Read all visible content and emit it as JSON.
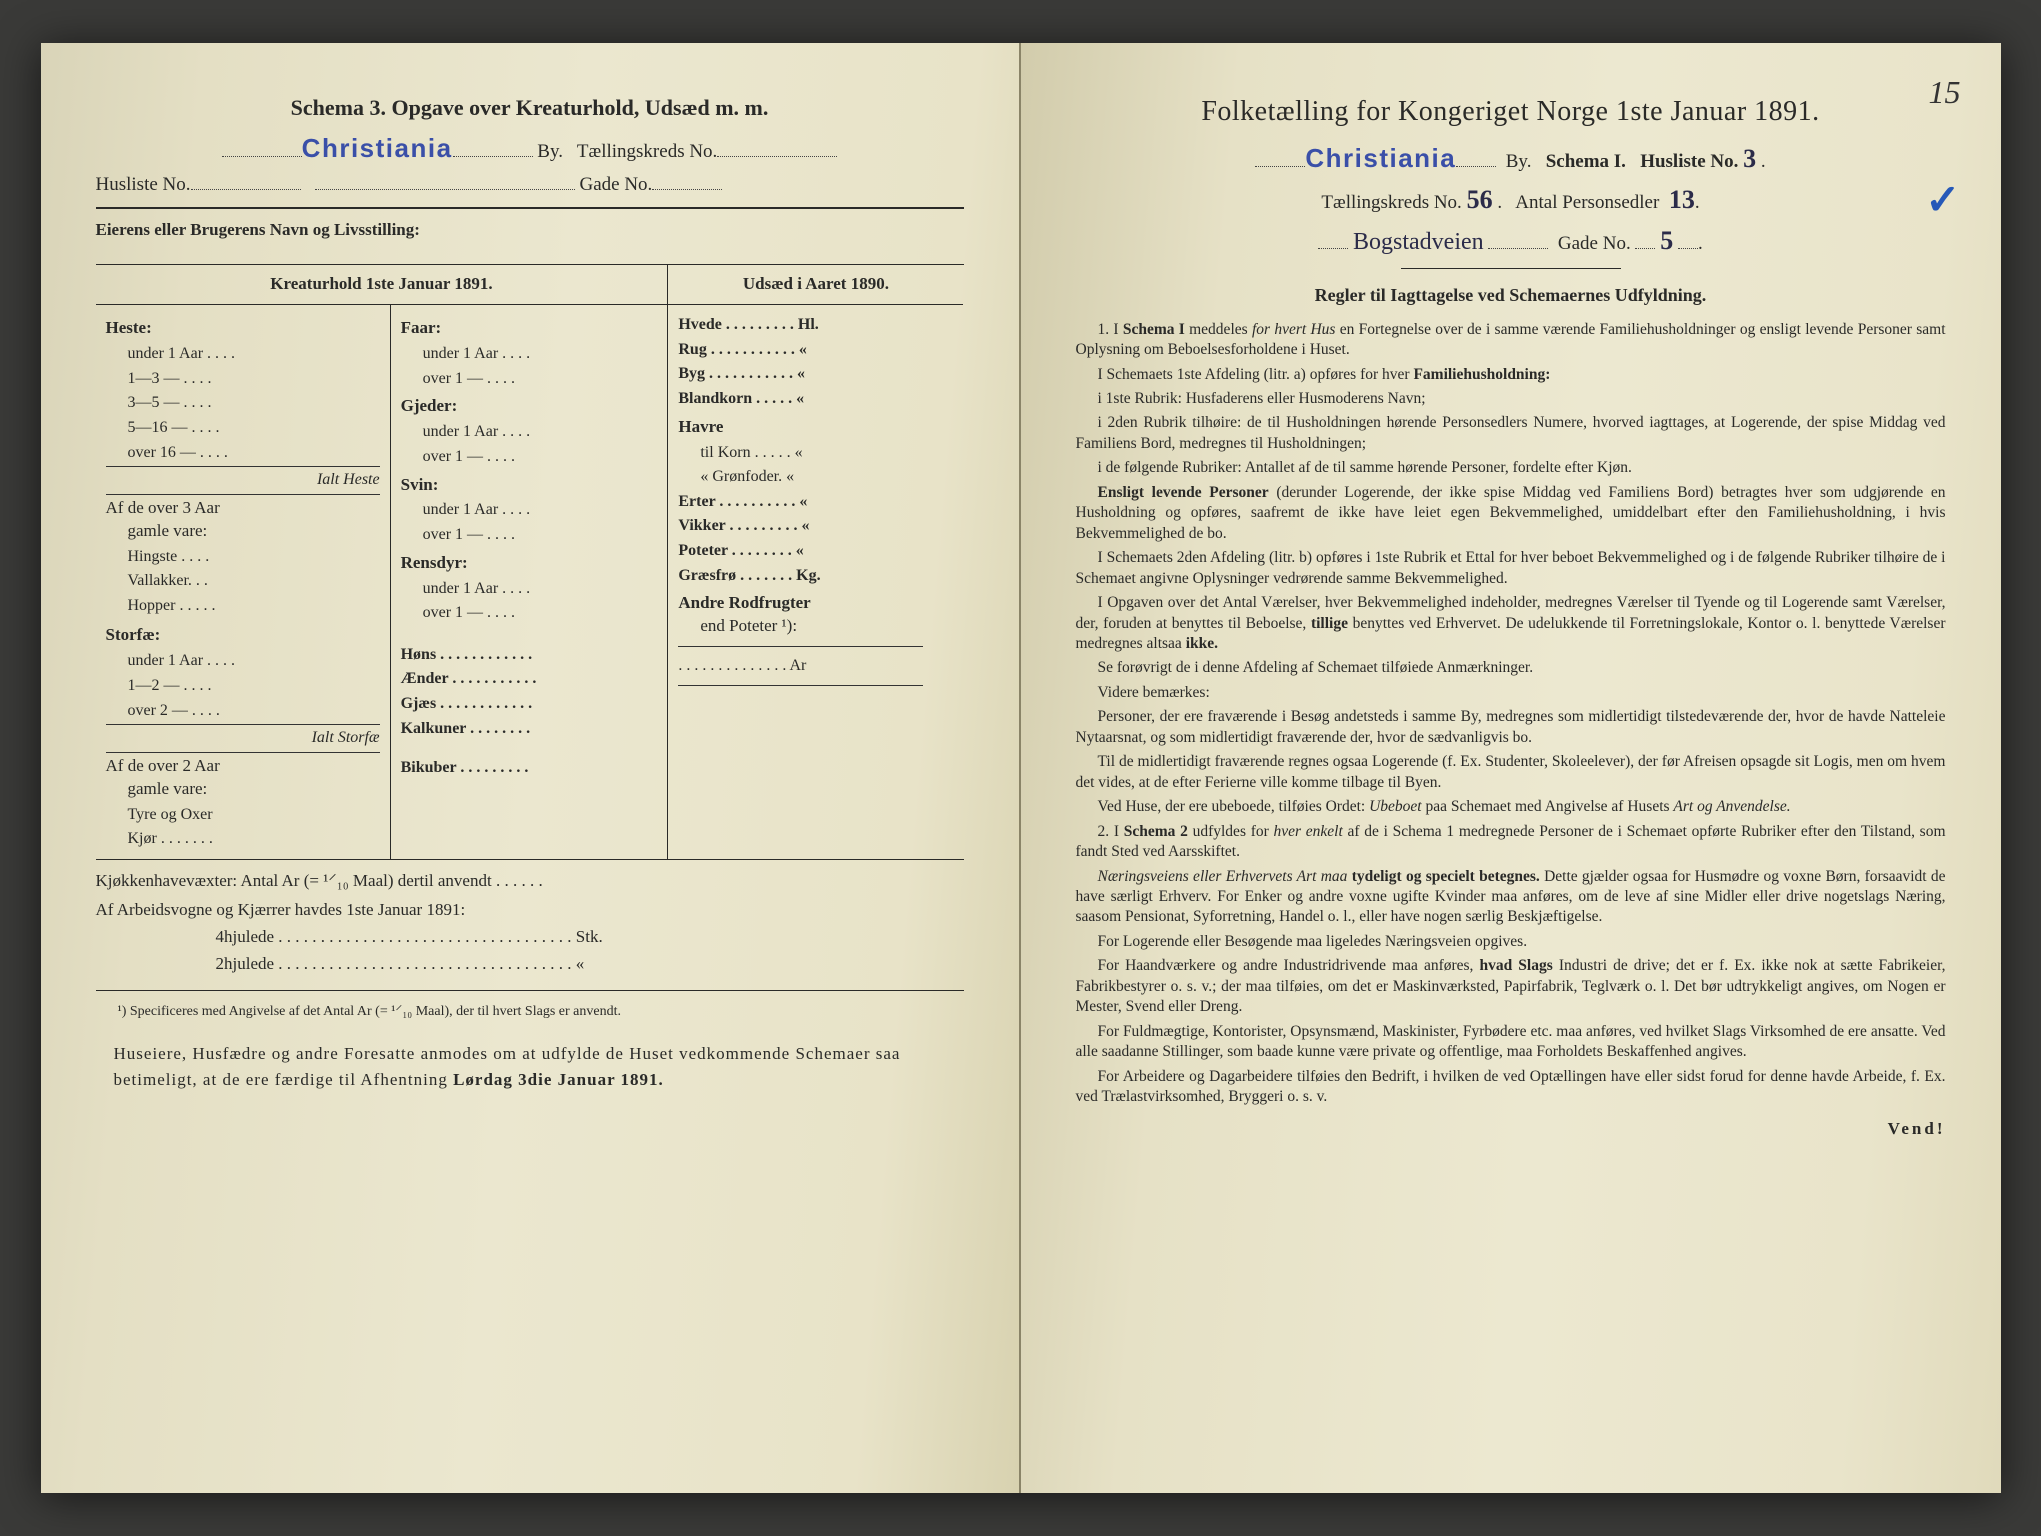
{
  "left": {
    "schema_title": "Schema 3.  Opgave over Kreaturhold, Udsæd m. m.",
    "city_stamp": "Christiania",
    "by_label": "By.",
    "tk_label": "Tællingskreds No.",
    "husliste_label": "Husliste No.",
    "gade_label": "Gade No.",
    "owner_label": "Eierens eller Brugerens Navn og Livsstilling:",
    "col_head_left": "Kreaturhold 1ste Januar 1891.",
    "col_head_right": "Udsæd i Aaret 1890.",
    "heste_hdr": "Heste:",
    "heste_rows": [
      "under 1 Aar . . . .",
      "1—3   —   . . . .",
      "3—5   —   . . . .",
      "5—16 —   . . . .",
      "over 16 —   . . . ."
    ],
    "ialt_heste": "Ialt Heste",
    "af_over3_1": "Af de over 3 Aar",
    "af_over3_2": "gamle vare:",
    "hingste": "Hingste . . . .",
    "vallakker": "Vallakker. . .",
    "hopper": "Hopper . . . . .",
    "storfae_hdr": "Storfæ:",
    "storfae_rows": [
      "under 1 Aar . . . .",
      "1—2   —   . . . .",
      "over 2   —   . . . ."
    ],
    "ialt_storfae": "Ialt Storfæ",
    "af_over2_1": "Af de over 2 Aar",
    "af_over2_2": "gamle vare:",
    "tyre": "Tyre og Oxer",
    "kjor": "Kjør . . . . . . .",
    "faar_hdr": "Faar:",
    "u1": "under 1 Aar . . . .",
    "o1": "over 1   —   . . . .",
    "gjeder_hdr": "Gjeder:",
    "svin_hdr": "Svin:",
    "rensdyr_hdr": "Rensdyr:",
    "hons": "Høns . . . . . . . . . . . .",
    "aender": "Ænder . . . . . . . . . . .",
    "gjaes": "Gjæs . . . . . . . . . . . .",
    "kalkuner": "Kalkuner . . . . . . . .",
    "bikuber": "Bikuber . . . . . . . . .",
    "udsaed": {
      "hvede": "Hvede . . . . . . . . . Hl.",
      "rug": "Rug . . . . . . . . . . .  «",
      "byg": "Byg . . . . . . . . . . .  «",
      "blandkorn": "Blandkorn . . . . .  «",
      "havre": "Havre",
      "til_korn": "til Korn . . . . .  «",
      "gronfoder": "«  Grønfoder.  «",
      "erter": "Erter . . . . . . . . . .  «",
      "vikker": "Vikker . . . . . . . . .  «",
      "poteter": "Poteter . . . . . . . .  «",
      "graesfro": "Græsfrø . . . . . . . Kg.",
      "andre_hdr": "Andre Rodfrugter",
      "end_poteter": "end Poteter ¹):",
      "ar": ". . . . . . . . . . . . . . Ar"
    },
    "kjokken": "Kjøkkenhavevæxter:  Antal Ar (= ¹⸍₁₀ Maal) dertil anvendt . . . . . .",
    "arbeidsvogne": "Af Arbeidsvogne og Kjærrer havdes 1ste Januar 1891:",
    "hjul4": "4hjulede . . . . . . . . . . . . . . . . . . . . . . . . . . . . . . . . . . . Stk.",
    "hjul2": "2hjulede . . . . . . . . . . . . . . . . . . . . . . . . . . . . . . . . . . .  «",
    "footnote": "¹) Specificeres med Angivelse af det Antal Ar (= ¹⸍₁₀ Maal), der til hvert Slags er anvendt.",
    "bottom": "Huseiere, Husfædre og andre Foresatte anmodes om at udfylde de Huset vedkommende Schemaer saa betimeligt, at de ere færdige til Afhentning Lørdag 3die Januar 1891."
  },
  "right": {
    "page_num": "15",
    "title": "Folketælling for Kongeriget Norge 1ste Januar 1891.",
    "city_stamp": "Christiania",
    "by_label": "By.",
    "schema_label": "Schema I.",
    "husliste_label": "Husliste No.",
    "husliste_val": "3",
    "tk_label": "Tællingskreds No.",
    "tk_val": "56",
    "pers_label": "Antal Personsedler",
    "pers_val": "13",
    "street_hw": "Bogstadveien",
    "gade_label": "Gade No.",
    "gade_val": "5",
    "rules_title": "Regler til Iagttagelse ved Schemaernes Udfyldning.",
    "body": [
      "1. I <b>Schema I</b> meddeles <i>for hvert Hus</i> en Fortegnelse over de i samme værende Familiehusholdninger og ensligt levende Personer samt Oplysning om Beboelsesforholdene i Huset.",
      "I Schemaets 1ste Afdeling (litr. a) opføres for hver <b>Familiehusholdning:</b>",
      "i 1ste Rubrik: Husfaderens eller Husmoderens Navn;",
      "i 2den Rubrik tilhøire: de til Husholdningen hørende Personsedlers Numere, hvorved iagttages, at Logerende, der spise Middag ved Familiens Bord, medregnes til Husholdningen;",
      "i de følgende Rubriker: Antallet af de til samme hørende Personer, fordelte efter Kjøn.",
      "<b>Ensligt levende Personer</b> (derunder Logerende, der ikke spise Middag ved Familiens Bord) betragtes hver som udgjørende en Husholdning og opføres, saafremt de ikke have leiet egen Bekvemmelighed, umiddelbart efter den Familiehusholdning, i hvis Bekvemmelighed de bo.",
      "I Schemaets 2den Afdeling (litr. b) opføres i 1ste Rubrik et Ettal for hver beboet Bekvemmelighed og i de følgende Rubriker tilhøire de i Schemaet angivne Oplysninger vedrørende samme Bekvemmelighed.",
      "I Opgaven over det Antal Værelser, hver Bekvemmelighed indeholder, medregnes Værelser til Tyende og til Logerende samt Værelser, der, foruden at benyttes til Beboelse, <b>tillige</b> benyttes ved Erhvervet. De udelukkende til Forretningslokale, Kontor o. l. benyttede Værelser medregnes altsaa <b>ikke.</b>",
      "Se forøvrigt de i denne Afdeling af Schemaet tilføiede Anmærkninger.",
      "Videre bemærkes:",
      "Personer, der ere fraværende i Besøg andetsteds i samme By, medregnes som midlertidigt tilstedeværende der, hvor de havde Natteleie Nytaarsnat, og som midlertidigt fraværende der, hvor de sædvanligvis bo.",
      "Til de midlertidigt fraværende regnes ogsaa Logerende (f. Ex. Studenter, Skoleelever), der før Afreisen opsagde sit Logis, men om hvem det vides, at de efter Ferierne ville komme tilbage til Byen.",
      "Ved Huse, der ere ubeboede, tilføies Ordet: <i>Ubeboet</i> paa Schemaet med Angivelse af Husets <i>Art og Anvendelse.</i>",
      "2. I <b>Schema 2</b> udfyldes for <i>hver enkelt</i> af de i Schema 1 medregnede Personer de i Schemaet opførte Rubriker efter den Tilstand, som fandt Sted ved Aarsskiftet.",
      "<i>Næringsveiens eller Erhvervets Art maa</i> <b>tydeligt og specielt betegnes.</b> Dette gjælder ogsaa for Husmødre og voxne Børn, forsaavidt de have særligt Erhverv. For Enker og andre voxne ugifte Kvinder maa anføres, om de leve af sine Midler eller drive nogetslags Næring, saasom Pensionat, Syforretning, Handel o. l., eller have nogen særlig Beskjæftigelse.",
      "For Logerende eller Besøgende maa ligeledes Næringsveien opgives.",
      "For Haandværkere og andre Industridrivende maa anføres, <b>hvad Slags</b> Industri de drive; det er f. Ex. ikke nok at sætte Fabrikeier, Fabrikbestyrer o. s. v.; der maa tilføies, om det er Maskinværksted, Papirfabrik, Teglværk o. l.  Det bør udtrykkeligt angives, om Nogen er Mester, Svend eller Dreng.",
      "For Fuldmægtige, Kontorister, Opsynsmænd, Maskinister, Fyrbødere etc. maa anføres, ved hvilket Slags Virksomhed de ere ansatte. Ved alle saadanne Stillinger, som baade kunne være private og offentlige, maa Forholdets Beskaffenhed angives.",
      "For Arbeidere og Dagarbeidere tilføies den Bedrift, i hvilken de ved Optællingen have eller sidst forud for denne havde Arbeide, f. Ex. ved Trælastvirksomhed, Bryggeri o. s. v."
    ],
    "vend": "Vend!"
  }
}
